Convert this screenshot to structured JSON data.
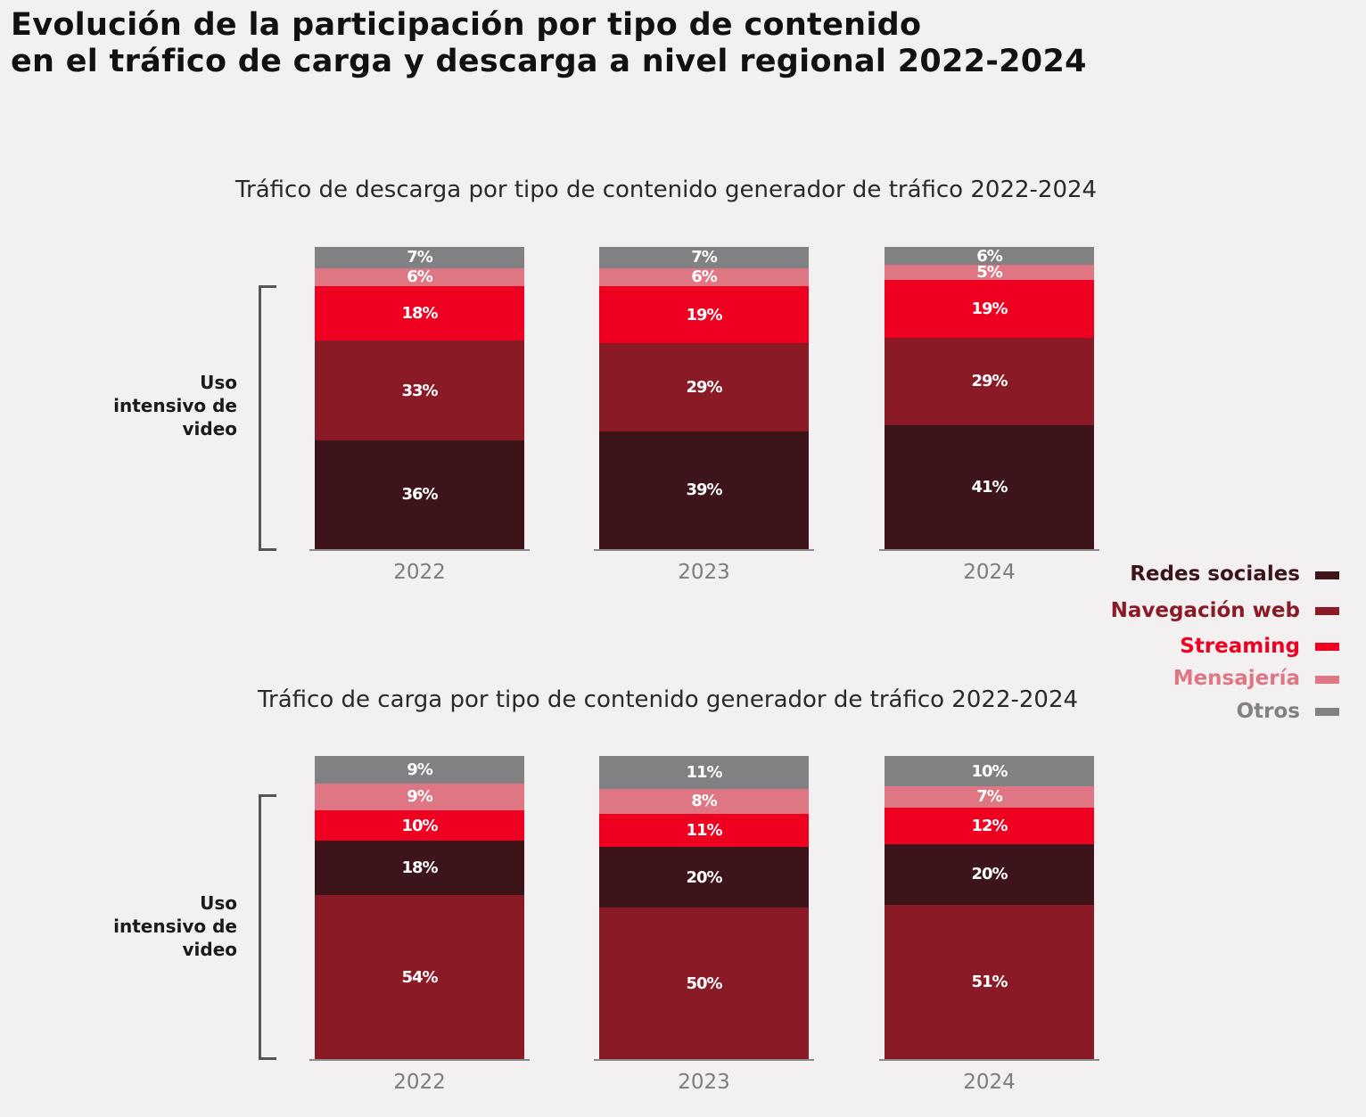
{
  "title_line1": "Evolución de la participación por tipo de contenido",
  "title_line2": "en el tráfico de carga y descarga a nivel regional 2022-2024",
  "bracket_label": [
    "Uso",
    "intensivo de",
    "video"
  ],
  "legend": [
    {
      "label": "Redes sociales",
      "color": "#3d1419"
    },
    {
      "label": "Navegación web",
      "color": "#8a1b26"
    },
    {
      "label": "Streaming",
      "color": "#ef0020"
    },
    {
      "label": "Mensajería",
      "color": "#de7783"
    },
    {
      "label": "Otros",
      "color": "#818083"
    }
  ],
  "chart_data": [
    {
      "type": "stacked-bar",
      "title": "Tráfico de descarga por tipo de contenido generador de tráfico 2022-2024",
      "categories": [
        "2022",
        "2023",
        "2024"
      ],
      "stack_order_bottom_to_top": [
        "Redes sociales",
        "Navegación web",
        "Streaming",
        "Mensajería",
        "Otros"
      ],
      "series": [
        {
          "name": "Redes sociales",
          "values": [
            36,
            39,
            41
          ],
          "labels": [
            "36%",
            "39%",
            "41%"
          ]
        },
        {
          "name": "Navegación web",
          "values": [
            33,
            29,
            29
          ],
          "labels": [
            "33%",
            "29%",
            "29%"
          ]
        },
        {
          "name": "Streaming",
          "values": [
            18,
            19,
            19
          ],
          "labels": [
            "18%",
            "19%",
            "19%"
          ]
        },
        {
          "name": "Mensajería",
          "values": [
            6,
            6,
            5
          ],
          "labels": [
            "6%",
            "6%",
            "5%"
          ]
        },
        {
          "name": "Otros",
          "values": [
            7,
            7,
            6
          ],
          "labels": [
            "7%",
            "7%",
            "6%"
          ]
        }
      ],
      "ylim": [
        0,
        100
      ]
    },
    {
      "type": "stacked-bar",
      "title": "Tráfico de carga por tipo de contenido generador de tráfico 2022-2024",
      "categories": [
        "2022",
        "2023",
        "2024"
      ],
      "stack_order_bottom_to_top": [
        "Navegación web",
        "Redes sociales",
        "Streaming",
        "Mensajería",
        "Otros"
      ],
      "series": [
        {
          "name": "Redes sociales",
          "values": [
            18,
            20,
            20
          ],
          "labels": [
            "18%",
            "20%",
            "20%"
          ]
        },
        {
          "name": "Navegación web",
          "values": [
            54,
            50,
            51
          ],
          "labels": [
            "54%",
            "50%",
            "51%"
          ]
        },
        {
          "name": "Streaming",
          "values": [
            10,
            11,
            12
          ],
          "labels": [
            "10%",
            "11%",
            "12%"
          ]
        },
        {
          "name": "Mensajería",
          "values": [
            9,
            8,
            7
          ],
          "labels": [
            "9%",
            "8%",
            "7%"
          ]
        },
        {
          "name": "Otros",
          "values": [
            9,
            11,
            10
          ],
          "labels": [
            "9%",
            "11%",
            "10%"
          ]
        }
      ],
      "ylim": [
        0,
        100
      ]
    }
  ]
}
